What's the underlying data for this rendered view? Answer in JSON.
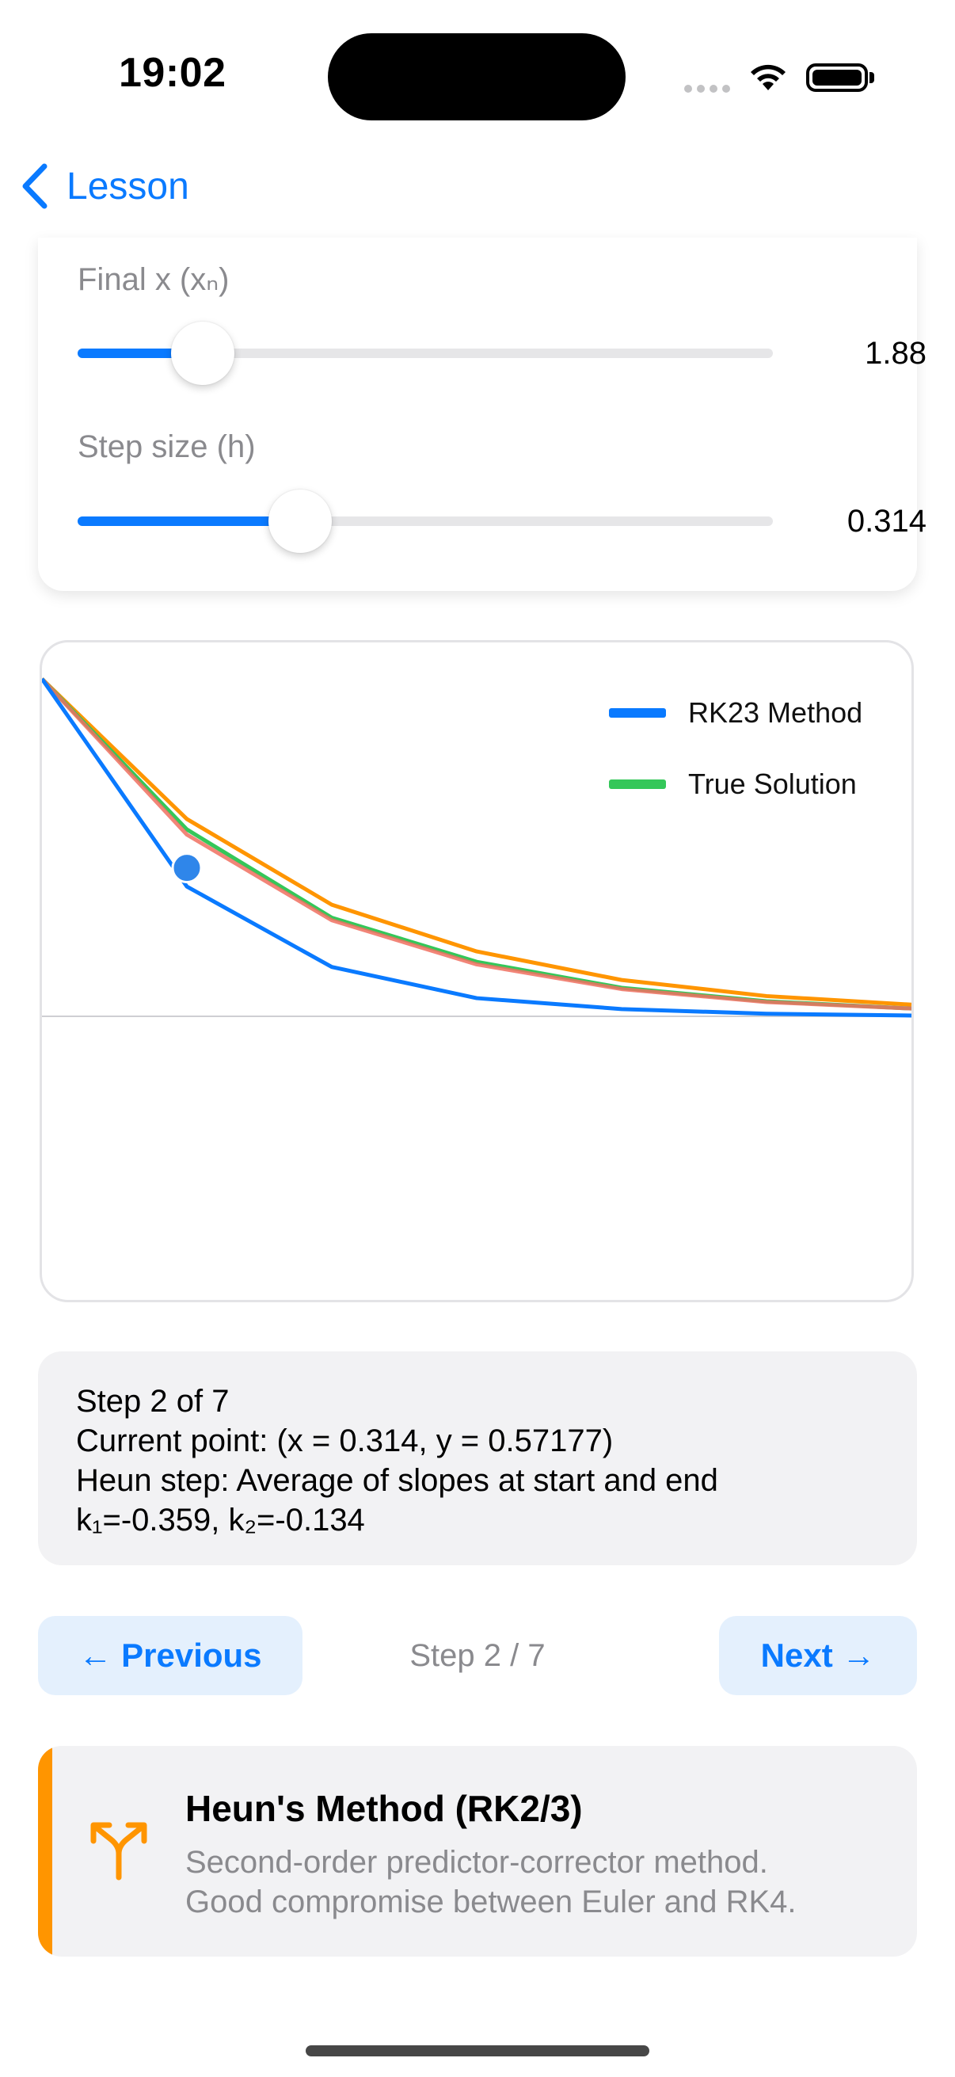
{
  "status_bar": {
    "time": "19:02"
  },
  "nav": {
    "back_label": "Lesson"
  },
  "controls": {
    "final_x": {
      "label": "Final x (xₙ)",
      "value_text": "1.88",
      "fraction": 0.18
    },
    "step_size": {
      "label": "Step size (h)",
      "value_text": "0.314",
      "fraction": 0.32
    }
  },
  "chart_data": {
    "type": "line",
    "title": "",
    "xlabel": "",
    "ylabel": "",
    "legend_position": "top-right",
    "highlight_point": {
      "x": 0.314,
      "y": 0.57177,
      "color": "#2f86ea"
    },
    "x": [
      0,
      0.314,
      0.628,
      0.942,
      1.256,
      1.57,
      1.884
    ],
    "xlim": [
      0,
      1.884
    ],
    "ylim": [
      0,
      1.3
    ],
    "series": [
      {
        "name": "RK23 Method",
        "color": "#0a7aff",
        "values": [
          1.3,
          0.5,
          0.19,
          0.07,
          0.028,
          0.01,
          0.003
        ]
      },
      {
        "name": "True Solution",
        "color": "#34c759",
        "values": [
          1.3,
          0.72,
          0.38,
          0.21,
          0.11,
          0.058,
          0.03
        ]
      },
      {
        "color": "#ff9500",
        "values": [
          1.3,
          0.76,
          0.43,
          0.25,
          0.14,
          0.078,
          0.045
        ]
      },
      {
        "color": "#f07060",
        "values": [
          1.3,
          0.7,
          0.37,
          0.2,
          0.105,
          0.055,
          0.03
        ]
      }
    ]
  },
  "info": {
    "line1": "Step 2 of 7",
    "line2": "Current point: (x = 0.314, y = 0.57177)",
    "line3": "Heun step: Average of slopes at start and end",
    "line4": "k₁=-0.359, k₂=-0.134"
  },
  "step_nav": {
    "previous_label": "← Previous",
    "next_label": "Next →",
    "indicator": "Step 2 / 7"
  },
  "method": {
    "title": "Heun's Method (RK2/3)",
    "desc_line1": "Second-order predictor-corrector method.",
    "desc_line2": "Good compromise between Euler and RK4.",
    "accent_color": "#ff9500",
    "icon": "branch-merge-icon"
  },
  "colors": {
    "accent": "#0a7aff",
    "card_bg": "#f2f2f4",
    "button_bg": "#e4f0fd"
  }
}
